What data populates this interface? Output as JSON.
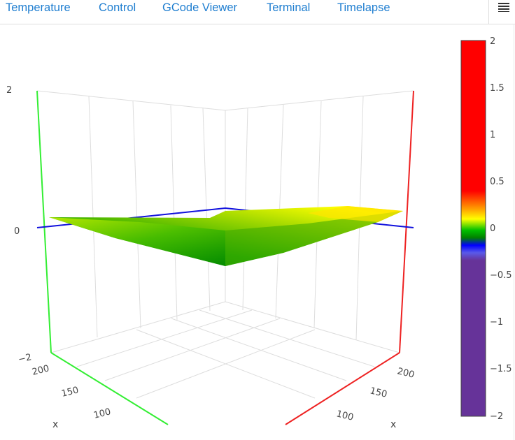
{
  "tabs": [
    {
      "label": "Temperature"
    },
    {
      "label": "Control"
    },
    {
      "label": "GCode Viewer"
    },
    {
      "label": "Terminal"
    },
    {
      "label": "Timelapse"
    }
  ],
  "menu": {
    "icon": "hamburger-icon"
  },
  "plot": {
    "z_ticks": [
      "2",
      "0",
      "−2"
    ],
    "x_ticks": [
      "200",
      "150",
      "100"
    ],
    "y_ticks": [
      "200",
      "150",
      "100"
    ],
    "x_axis_title": "x",
    "y_axis_title": "x",
    "colorbar": {
      "ticks": [
        "2",
        "1.5",
        "1",
        "0.5",
        "0",
        "−0.5",
        "−1",
        "−1.5",
        "−2"
      ],
      "range": [
        -2,
        2
      ],
      "colorscale": [
        {
          "value": 2.0,
          "color": "#ff0000"
        },
        {
          "value": 0.75,
          "color": "#ff0000"
        },
        {
          "value": 0.35,
          "color": "#ffa500"
        },
        {
          "value": 0.2,
          "color": "#ffff00"
        },
        {
          "value": 0.05,
          "color": "#008000"
        },
        {
          "value": -0.1,
          "color": "#0000ff"
        },
        {
          "value": -0.35,
          "color": "#663399"
        },
        {
          "value": -2.0,
          "color": "#663399"
        }
      ]
    },
    "axis_colors": {
      "x": "#ff0000",
      "y": "#00ff00",
      "z": "#0000ff"
    }
  }
}
